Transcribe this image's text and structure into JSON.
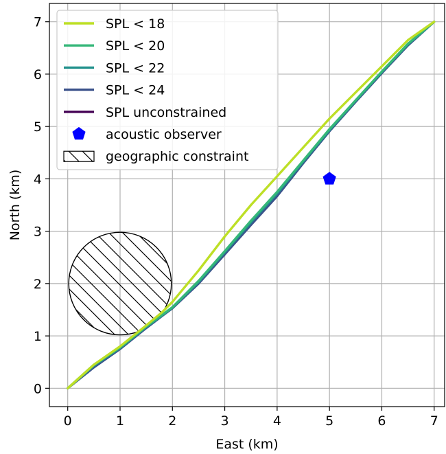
{
  "chart_data": {
    "type": "line",
    "xlabel": "East (km)",
    "ylabel": "North (km)",
    "xlim": [
      -0.35,
      7.2
    ],
    "ylim": [
      -0.35,
      7.35
    ],
    "x_ticks": [
      0,
      1,
      2,
      3,
      4,
      5,
      6,
      7
    ],
    "y_ticks": [
      0,
      1,
      2,
      3,
      4,
      5,
      6,
      7
    ],
    "grid": true,
    "legend_position": "top-left",
    "series": [
      {
        "name": "SPL < 18",
        "color": "#bddf26",
        "x": [
          0,
          0.5,
          1.0,
          1.5,
          1.8,
          2.0,
          2.5,
          3.0,
          3.5,
          4.0,
          4.5,
          5.0,
          5.5,
          6.0,
          6.5,
          7.0
        ],
        "y": [
          0,
          0.45,
          0.8,
          1.2,
          1.45,
          1.65,
          2.25,
          2.9,
          3.5,
          4.05,
          4.6,
          5.15,
          5.65,
          6.15,
          6.65,
          7.0
        ]
      },
      {
        "name": "SPL < 20",
        "color": "#35b779",
        "x": [
          0,
          0.5,
          1.0,
          1.5,
          1.8,
          2.0,
          2.5,
          3.0,
          3.5,
          4.0,
          4.5,
          5.0,
          5.5,
          6.0,
          6.5,
          7.0
        ],
        "y": [
          0,
          0.45,
          0.78,
          1.18,
          1.4,
          1.55,
          2.05,
          2.62,
          3.2,
          3.75,
          4.35,
          4.95,
          5.5,
          6.05,
          6.58,
          7.0
        ]
      },
      {
        "name": "SPL < 22",
        "color": "#21918c",
        "x": [
          0,
          0.5,
          1.0,
          1.5,
          1.8,
          2.0,
          2.5,
          3.0,
          3.5,
          4.0,
          4.5,
          5.0,
          5.5,
          6.0,
          6.5,
          7.0
        ],
        "y": [
          0,
          0.43,
          0.77,
          1.17,
          1.39,
          1.54,
          2.03,
          2.6,
          3.17,
          3.72,
          4.33,
          4.93,
          5.49,
          6.04,
          6.57,
          7.0
        ]
      },
      {
        "name": "SPL < 24",
        "color": "#3b528b",
        "x": [
          0,
          0.5,
          1.0,
          1.5,
          1.8,
          2.0,
          2.5,
          3.0,
          3.5,
          4.0,
          4.5,
          5.0,
          5.5,
          6.0,
          6.5,
          7.0
        ],
        "y": [
          0,
          0.4,
          0.75,
          1.15,
          1.38,
          1.53,
          2.0,
          2.56,
          3.12,
          3.67,
          4.3,
          4.91,
          5.47,
          6.02,
          6.55,
          7.0
        ]
      },
      {
        "name": "SPL unconstrained",
        "color": "#440154",
        "x": [],
        "y": []
      }
    ],
    "markers": [
      {
        "name": "acoustic observer",
        "color": "#0000ff",
        "shape": "pentagon",
        "x": 5,
        "y": 4
      }
    ],
    "shapes": [
      {
        "name": "geographic constraint",
        "type": "circle",
        "hatch": "\\\\",
        "center_x": 1,
        "center_y": 2,
        "radius": 0.98
      }
    ]
  }
}
